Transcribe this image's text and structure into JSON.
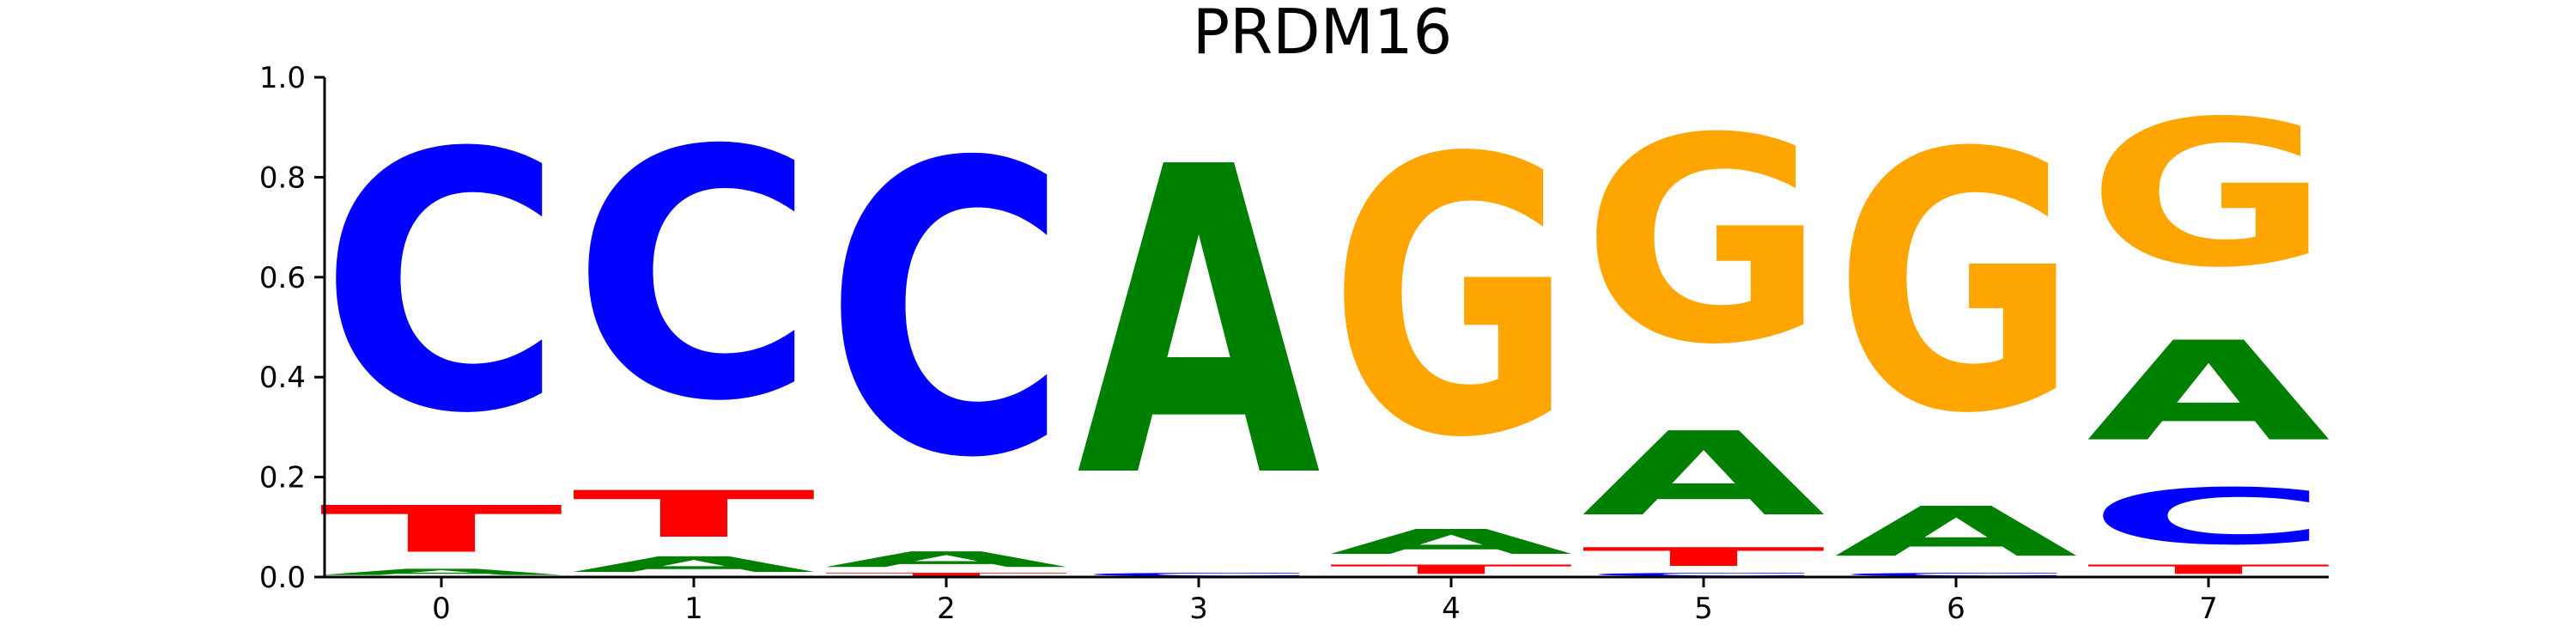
{
  "chart_data": {
    "type": "sequence-logo",
    "title": "PRDM16",
    "xlabel": "",
    "ylabel": "",
    "ylim": [
      0,
      1
    ],
    "yticks": [
      "0.0",
      "0.2",
      "0.4",
      "0.6",
      "0.8",
      "1.0"
    ],
    "xticks": [
      "0",
      "1",
      "2",
      "3",
      "4",
      "5",
      "6",
      "7"
    ],
    "grid": false,
    "colors": {
      "A": "#008000",
      "C": "#0000ff",
      "G": "#ffa500",
      "T": "#ff0000"
    },
    "positions": [
      {
        "position": "0",
        "letters": [
          {
            "base": "A",
            "value": 0.02
          },
          {
            "base": "T",
            "value": 0.15
          },
          {
            "base": "C",
            "value": 0.83
          }
        ]
      },
      {
        "position": "1",
        "letters": [
          {
            "base": "A",
            "value": 0.05
          },
          {
            "base": "T",
            "value": 0.15
          },
          {
            "base": "C",
            "value": 0.8
          }
        ]
      },
      {
        "position": "2",
        "letters": [
          {
            "base": "T",
            "value": 0.01
          },
          {
            "base": "A",
            "value": 0.05
          },
          {
            "base": "C",
            "value": 0.94
          }
        ]
      },
      {
        "position": "3",
        "letters": [
          {
            "base": "C",
            "value": 0.01
          },
          {
            "base": "A",
            "value": 0.99
          }
        ]
      },
      {
        "position": "4",
        "letters": [
          {
            "base": "T",
            "value": 0.03
          },
          {
            "base": "A",
            "value": 0.08
          },
          {
            "base": "G",
            "value": 0.89
          }
        ]
      },
      {
        "position": "5",
        "letters": [
          {
            "base": "C",
            "value": 0.01
          },
          {
            "base": "T",
            "value": 0.06
          },
          {
            "base": "A",
            "value": 0.27
          },
          {
            "base": "G",
            "value": 0.66
          }
        ]
      },
      {
        "position": "6",
        "letters": [
          {
            "base": "C",
            "value": 0.01
          },
          {
            "base": "A",
            "value": 0.16
          },
          {
            "base": "G",
            "value": 0.83
          }
        ]
      },
      {
        "position": "7",
        "letters": [
          {
            "base": "T",
            "value": 0.03
          },
          {
            "base": "C",
            "value": 0.18
          },
          {
            "base": "A",
            "value": 0.32
          },
          {
            "base": "G",
            "value": 0.47
          }
        ]
      }
    ]
  }
}
